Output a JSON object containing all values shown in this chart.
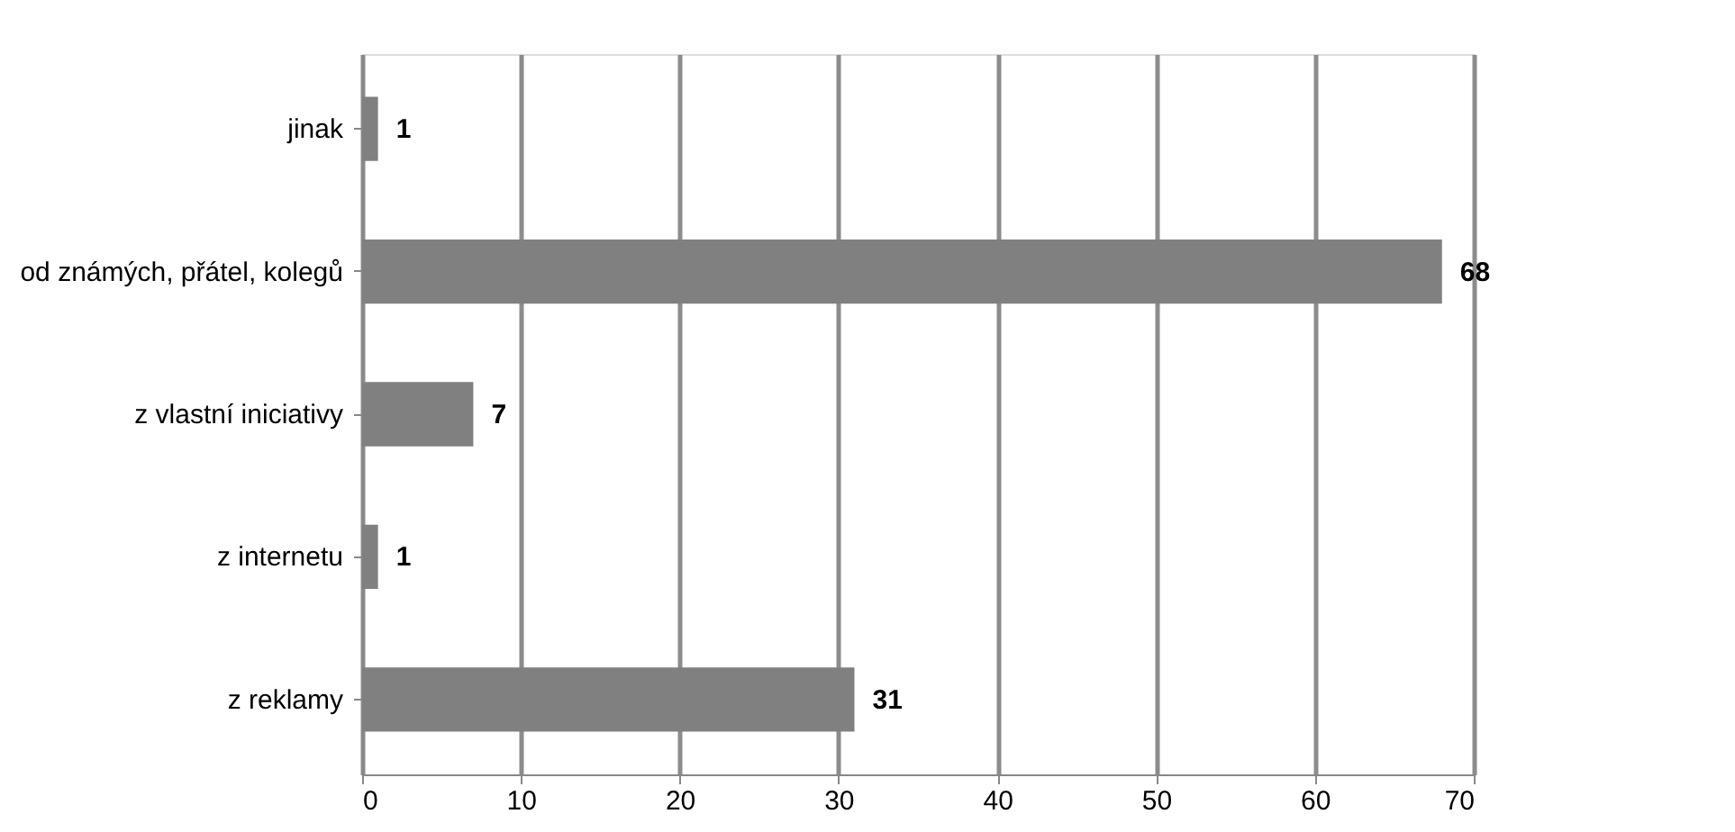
{
  "chart_data": {
    "type": "bar",
    "orientation": "horizontal",
    "categories": [
      "jinak",
      "od známých, přátel, kolegů",
      "z vlastní iniciativy",
      "z internetu",
      "z reklamy"
    ],
    "values": [
      1,
      68,
      7,
      1,
      31
    ],
    "color": "#808080",
    "xlim": [
      0,
      70
    ],
    "xticks": [
      0,
      10,
      20,
      30,
      40,
      50,
      60,
      70
    ],
    "grid": "x",
    "data_labels": true
  }
}
